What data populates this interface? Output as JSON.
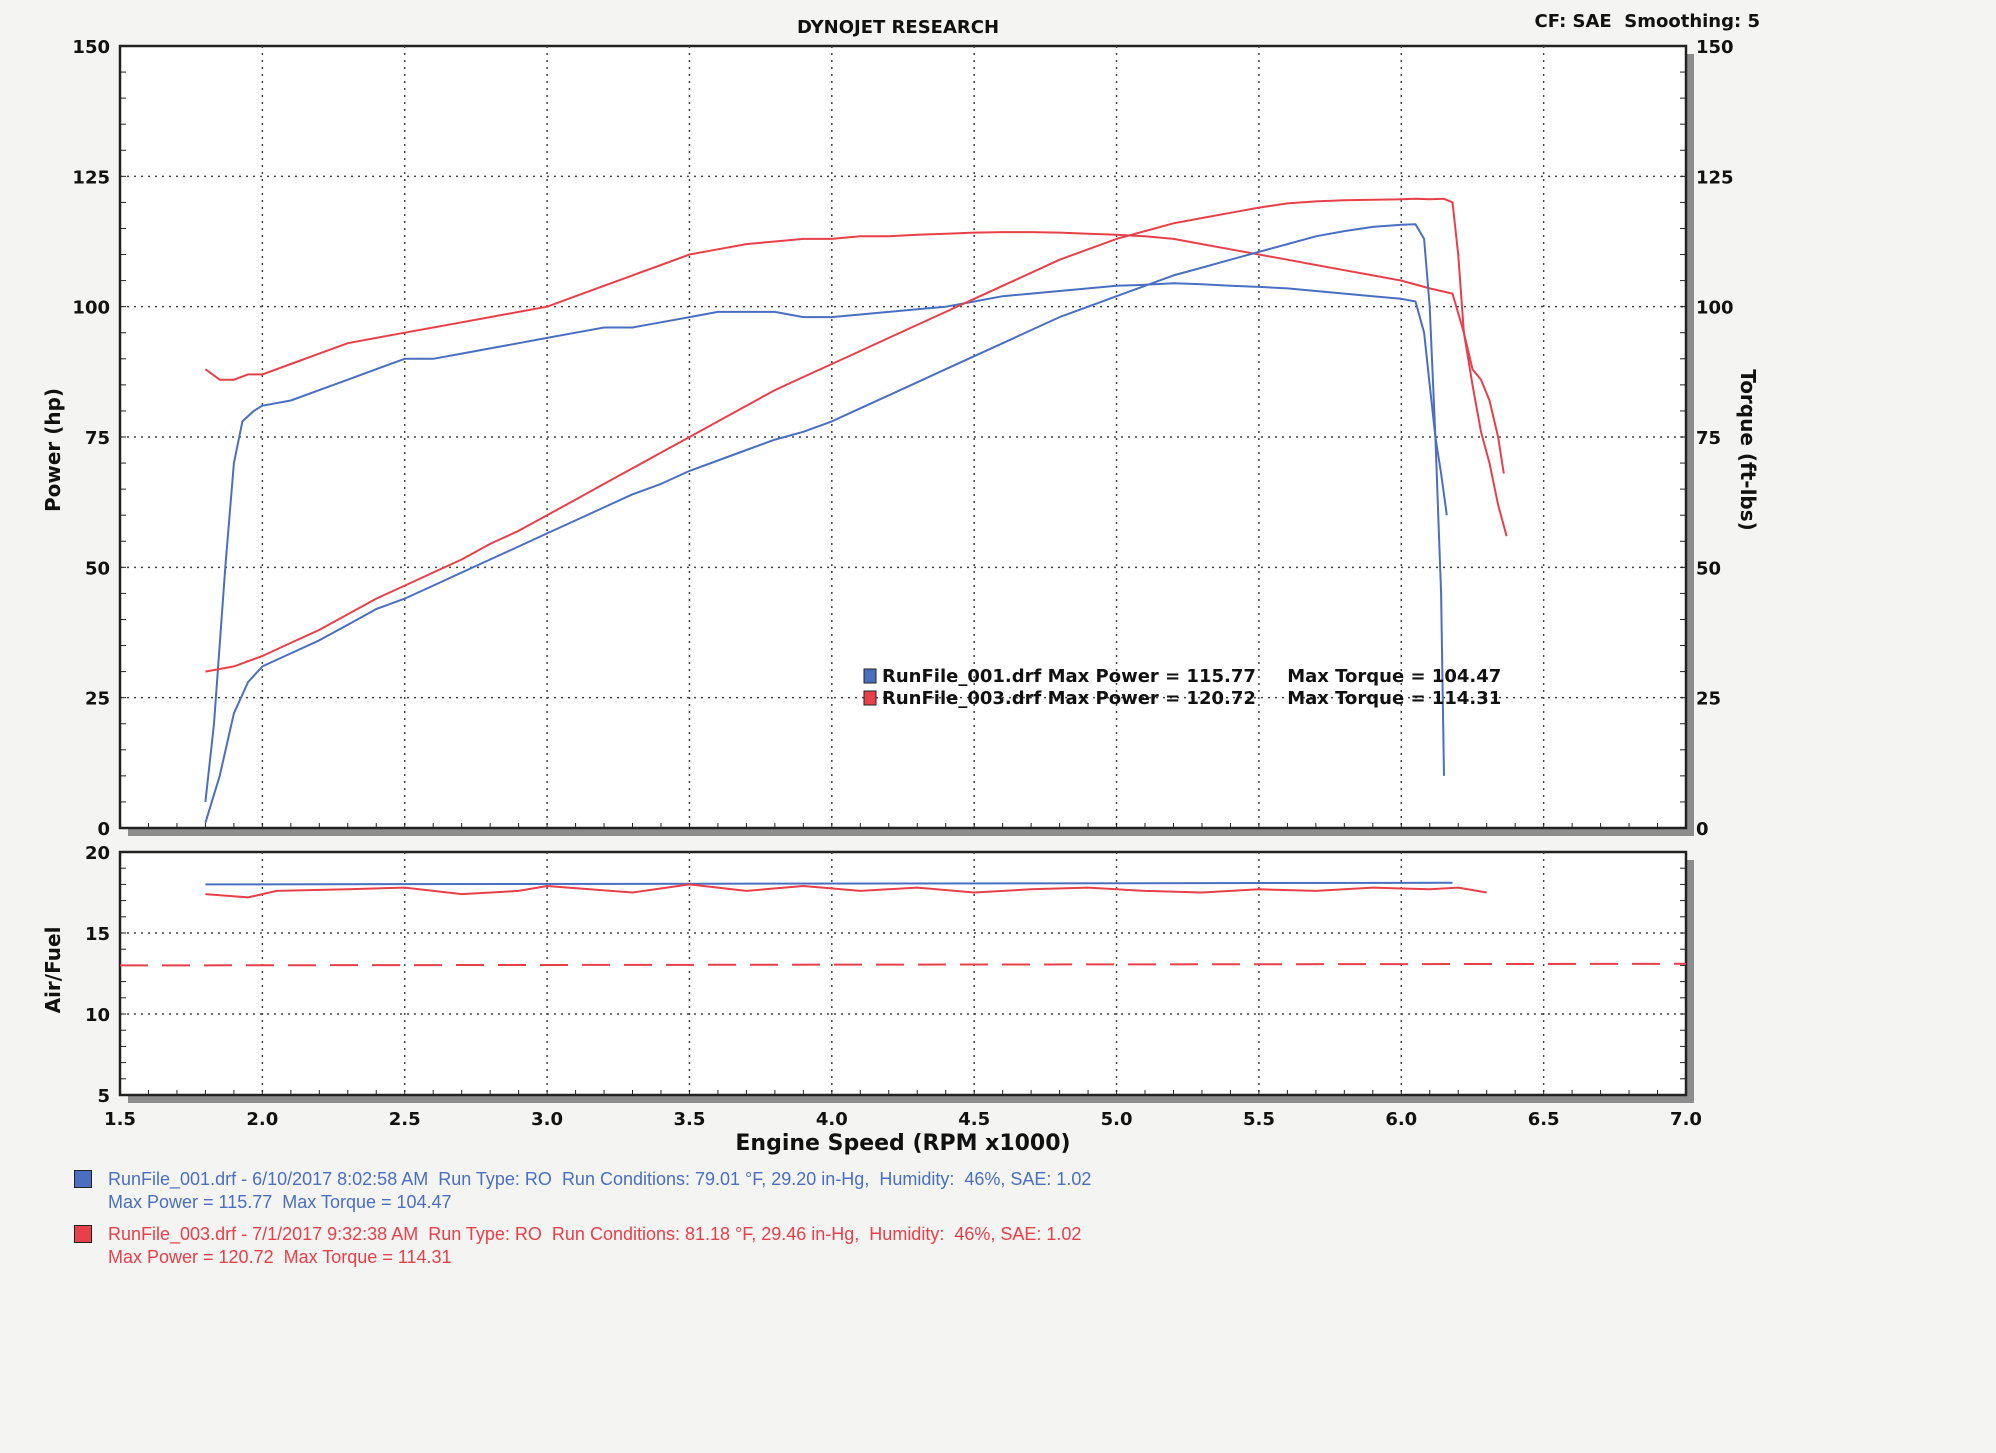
{
  "header": {
    "title": "DYNOJET RESEARCH",
    "settings": "CF: SAE  Smoothing: 5"
  },
  "colors": {
    "run1": "#4a6fc0",
    "run2": "#e8404a",
    "grid": "#444444",
    "frame": "#222222"
  },
  "legend_box": {
    "run1": "RunFile_001.drf Max Power = 115.77     Max Torque = 104.47",
    "run2": "RunFile_003.drf Max Power = 120.72     Max Torque = 114.31"
  },
  "runs": [
    {
      "line1": "RunFile_001.drf - 6/10/2017 8:02:58 AM  Run Type: RO  Run Conditions: 79.01 °F, 29.20 in-Hg,  Humidity:  46%, SAE: 1.02",
      "line2": "Max Power = 115.77  Max Torque = 104.47",
      "color": "#4a6fc0"
    },
    {
      "line1": "RunFile_003.drf - 7/1/2017 9:32:38 AM  Run Type: RO  Run Conditions: 81.18 °F, 29.46 in-Hg,  Humidity:  46%, SAE: 1.02",
      "line2": "Max Power = 120.72  Max Torque = 114.31",
      "color": "#e8404a"
    }
  ],
  "chart_data": [
    {
      "type": "line",
      "title": "DYNOJET RESEARCH",
      "xlabel": "",
      "ylabel": "Power (hp)",
      "y2label": "Torque (ft-lbs)",
      "xlim": [
        1.5,
        7.0
      ],
      "ylim": [
        0,
        150
      ],
      "y2lim": [
        0,
        150
      ],
      "yticks": [
        0,
        25,
        50,
        75,
        100,
        125,
        150
      ],
      "grid": true,
      "legend_position": "center-right",
      "series": [
        {
          "name": "RunFile_001.drf",
          "measure": "torque",
          "color": "#4a6fc0",
          "x": [
            1.8,
            1.83,
            1.87,
            1.9,
            1.93,
            1.97,
            2.0,
            2.1,
            2.2,
            2.3,
            2.4,
            2.5,
            2.6,
            2.7,
            2.8,
            2.9,
            3.0,
            3.1,
            3.2,
            3.3,
            3.4,
            3.5,
            3.6,
            3.7,
            3.8,
            3.9,
            4.0,
            4.1,
            4.2,
            4.3,
            4.4,
            4.5,
            4.6,
            4.7,
            4.8,
            4.9,
            5.0,
            5.1,
            5.2,
            5.3,
            5.4,
            5.5,
            5.6,
            5.7,
            5.8,
            5.9,
            6.0,
            6.05,
            6.08,
            6.1,
            6.12,
            6.14,
            6.16
          ],
          "y": [
            5,
            20,
            50,
            70,
            78,
            80,
            81,
            82,
            84,
            86,
            88,
            90,
            90,
            91,
            92,
            93,
            94,
            95,
            96,
            96,
            97,
            98,
            99,
            99,
            99,
            98,
            98,
            98.5,
            99,
            99.5,
            100,
            101,
            102,
            102.5,
            103,
            103.5,
            104,
            104.2,
            104.5,
            104.3,
            104,
            103.8,
            103.5,
            103,
            102.5,
            102,
            101.5,
            101,
            95,
            85,
            75,
            68,
            60
          ]
        },
        {
          "name": "RunFile_003.drf",
          "measure": "torque",
          "color": "#e8404a",
          "x": [
            1.8,
            1.85,
            1.9,
            1.95,
            2.0,
            2.1,
            2.2,
            2.3,
            2.4,
            2.5,
            2.6,
            2.7,
            2.8,
            2.9,
            3.0,
            3.1,
            3.2,
            3.3,
            3.4,
            3.5,
            3.6,
            3.7,
            3.8,
            3.9,
            4.0,
            4.1,
            4.2,
            4.3,
            4.4,
            4.5,
            4.6,
            4.7,
            4.8,
            4.9,
            5.0,
            5.1,
            5.2,
            5.3,
            5.4,
            5.5,
            5.6,
            5.7,
            5.8,
            5.9,
            6.0,
            6.1,
            6.18,
            6.22,
            6.25,
            6.28,
            6.31,
            6.34,
            6.37
          ],
          "y": [
            88,
            86,
            86,
            87,
            87,
            89,
            91,
            93,
            94,
            95,
            96,
            97,
            98,
            99,
            100,
            102,
            104,
            106,
            108,
            110,
            111,
            112,
            112.5,
            113,
            113,
            113.5,
            113.5,
            113.8,
            114,
            114.2,
            114.3,
            114.3,
            114.2,
            114,
            113.8,
            113.5,
            113,
            112,
            111,
            110,
            109,
            108,
            107,
            106,
            105,
            103.5,
            102.5,
            95,
            85,
            76,
            70,
            62,
            56
          ]
        },
        {
          "name": "RunFile_001.drf",
          "measure": "power",
          "color": "#4a6fc0",
          "x": [
            1.8,
            1.85,
            1.9,
            1.95,
            2.0,
            2.1,
            2.2,
            2.3,
            2.4,
            2.5,
            2.6,
            2.7,
            2.8,
            2.9,
            3.0,
            3.1,
            3.2,
            3.3,
            3.4,
            3.5,
            3.6,
            3.7,
            3.8,
            3.9,
            4.0,
            4.1,
            4.2,
            4.3,
            4.4,
            4.5,
            4.6,
            4.7,
            4.8,
            4.9,
            5.0,
            5.1,
            5.2,
            5.3,
            5.4,
            5.5,
            5.6,
            5.7,
            5.8,
            5.9,
            6.0,
            6.05,
            6.08,
            6.1,
            6.12,
            6.14,
            6.15
          ],
          "y": [
            1,
            10,
            22,
            28,
            31,
            33.5,
            36,
            39,
            42,
            44,
            46.5,
            49,
            51.5,
            54,
            56.5,
            59,
            61.5,
            64,
            66,
            68.5,
            70.5,
            72.5,
            74.5,
            76,
            78,
            80.5,
            83,
            85.5,
            88,
            90.5,
            93,
            95.5,
            98,
            100,
            102,
            104,
            106,
            107.5,
            109,
            110.5,
            112,
            113.5,
            114.5,
            115.3,
            115.7,
            115.8,
            113,
            100,
            75,
            45,
            10
          ]
        },
        {
          "name": "RunFile_003.drf",
          "measure": "power",
          "color": "#e8404a",
          "x": [
            1.8,
            1.9,
            2.0,
            2.1,
            2.2,
            2.3,
            2.4,
            2.5,
            2.6,
            2.7,
            2.8,
            2.9,
            3.0,
            3.1,
            3.2,
            3.3,
            3.4,
            3.5,
            3.6,
            3.7,
            3.8,
            3.9,
            4.0,
            4.1,
            4.2,
            4.3,
            4.4,
            4.5,
            4.6,
            4.7,
            4.8,
            4.9,
            5.0,
            5.1,
            5.2,
            5.3,
            5.4,
            5.5,
            5.6,
            5.7,
            5.8,
            5.9,
            6.0,
            6.05,
            6.1,
            6.15,
            6.18,
            6.2,
            6.22,
            6.25,
            6.28,
            6.31,
            6.34,
            6.36
          ],
          "y": [
            30,
            31,
            33,
            35.5,
            38,
            41,
            44,
            46.5,
            49,
            51.5,
            54.5,
            57,
            60,
            63,
            66,
            69,
            72,
            75,
            78,
            81,
            84,
            86.5,
            89,
            91.5,
            94,
            96.5,
            99,
            101.5,
            104,
            106.5,
            109,
            111,
            113,
            114.5,
            116,
            117,
            118,
            119,
            119.8,
            120.2,
            120.4,
            120.5,
            120.6,
            120.7,
            120.6,
            120.7,
            120,
            110,
            95,
            88,
            86,
            82,
            75,
            68
          ]
        }
      ]
    },
    {
      "type": "line",
      "xlabel": "Engine Speed (RPM x1000)",
      "ylabel": "Air/Fuel",
      "xlim": [
        1.5,
        7.0
      ],
      "xticks": [
        1.5,
        2.0,
        2.5,
        3.0,
        3.5,
        4.0,
        4.5,
        5.0,
        5.5,
        6.0,
        6.5,
        7.0
      ],
      "ylim": [
        5,
        20
      ],
      "yticks": [
        5,
        10,
        15,
        20
      ],
      "grid": true,
      "series": [
        {
          "name": "RunFile_001.drf",
          "color": "#4a6fc0",
          "x": [
            1.8,
            6.18
          ],
          "y": [
            18.0,
            18.1
          ]
        },
        {
          "name": "RunFile_003.drf",
          "color": "#e8404a",
          "x": [
            1.8,
            1.95,
            2.05,
            2.3,
            2.5,
            2.7,
            2.9,
            3.0,
            3.15,
            3.3,
            3.5,
            3.7,
            3.9,
            4.1,
            4.3,
            4.5,
            4.7,
            4.9,
            5.1,
            5.3,
            5.5,
            5.7,
            5.9,
            6.1,
            6.2,
            6.3
          ],
          "y": [
            17.4,
            17.2,
            17.6,
            17.7,
            17.8,
            17.4,
            17.6,
            17.9,
            17.7,
            17.5,
            18.0,
            17.6,
            17.9,
            17.6,
            17.8,
            17.5,
            17.7,
            17.8,
            17.6,
            17.5,
            17.7,
            17.6,
            17.8,
            17.7,
            17.8,
            17.5
          ]
        },
        {
          "name": "",
          "color": "#e8404a",
          "style": "dashed",
          "x": [
            1.5,
            7.0
          ],
          "y": [
            13.0,
            13.1
          ]
        }
      ]
    }
  ]
}
